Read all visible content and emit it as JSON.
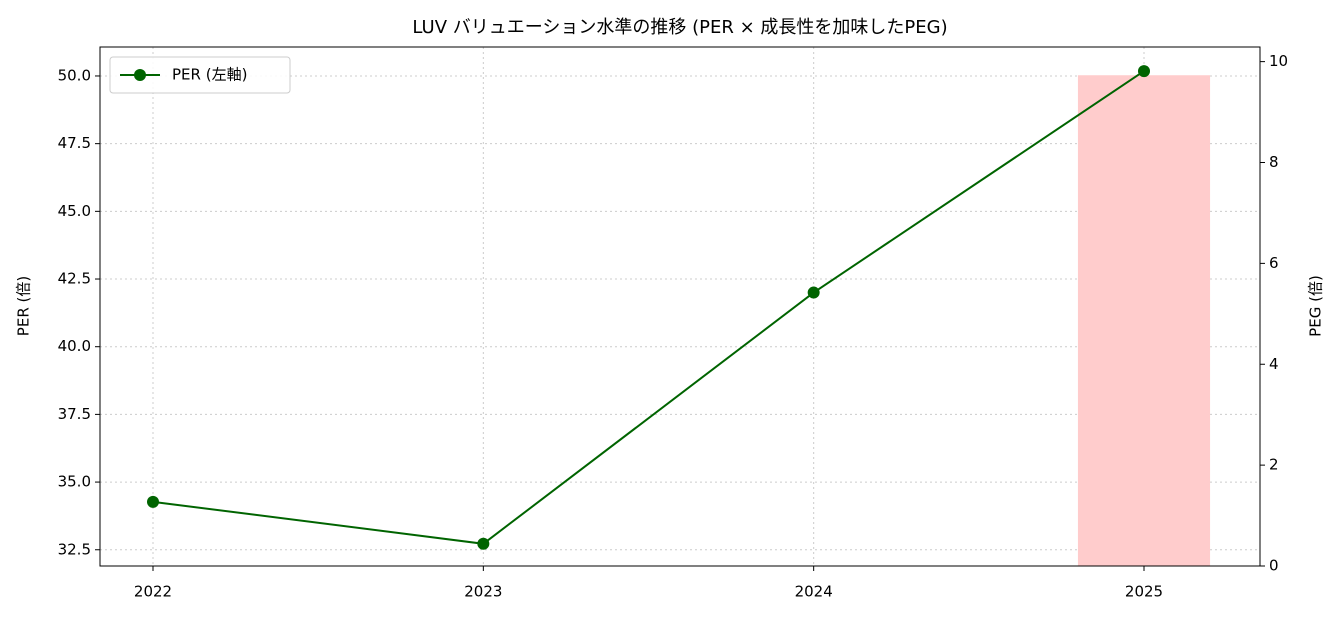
{
  "chart_data": {
    "type": "line",
    "title": "LUV バリュエーション水準の推移 (PER × 成長性を加味したPEG)",
    "y_label": "PER (倍)",
    "y2_label": "PEG (倍)",
    "categories": [
      "2022",
      "2023",
      "2024",
      "2025"
    ],
    "series": [
      {
        "name": "PER (左軸)",
        "type": "line",
        "color": "#006400",
        "values": [
          34.27,
          32.72,
          42.0,
          50.18
        ]
      },
      {
        "type": "bar",
        "axis": "y2",
        "color": "#ffcccc",
        "values": [
          null,
          null,
          null,
          9.73
        ]
      }
    ],
    "ylim": [
      31.9,
      51.07
    ],
    "yticks": [
      {
        "value": 32.5,
        "label": "32.5"
      },
      {
        "value": 35,
        "label": "35.0"
      },
      {
        "value": 37.5,
        "label": "37.5"
      },
      {
        "value": 40,
        "label": "40.0"
      },
      {
        "value": 42.5,
        "label": "42.5"
      },
      {
        "value": 45,
        "label": "45.0"
      },
      {
        "value": 47.5,
        "label": "47.5"
      },
      {
        "value": 50,
        "label": "50.0"
      }
    ],
    "y2lim": [
      0,
      10.29
    ],
    "y2ticks": [
      0,
      2,
      4,
      6,
      8,
      10
    ],
    "grid": true,
    "legend": "upper-left"
  }
}
